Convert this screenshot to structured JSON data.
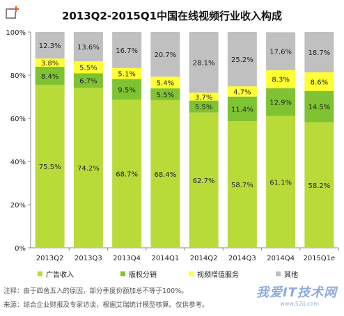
{
  "chart_data": {
    "type": "bar",
    "stacked": true,
    "title": "2013Q2-2015Q1中国在线视频行业收入构成",
    "categories": [
      "2013Q2",
      "2013Q3",
      "2013Q4",
      "2014Q1",
      "2014Q2",
      "2014Q3",
      "2014Q4",
      "2015Q1e"
    ],
    "series": [
      {
        "name": "广告收入",
        "color": "#b9db3a",
        "values": [
          75.5,
          74.2,
          68.7,
          68.4,
          62.7,
          58.7,
          61.1,
          58.2
        ]
      },
      {
        "name": "版权分销",
        "color": "#7fc333",
        "values": [
          8.4,
          6.7,
          9.5,
          5.5,
          5.5,
          11.4,
          12.9,
          14.5
        ]
      },
      {
        "name": "视频增值服务",
        "color": "#ffff33",
        "values": [
          3.8,
          5.5,
          5.1,
          5.4,
          3.7,
          4.7,
          8.3,
          8.6
        ]
      },
      {
        "name": "其他",
        "color": "#c0c0c0",
        "values": [
          12.3,
          13.6,
          16.7,
          20.7,
          28.1,
          25.2,
          17.6,
          18.7
        ]
      }
    ],
    "data_labels": [
      [
        "75.5%",
        "74.2%",
        "68.7%",
        "68.4%",
        "62.7%",
        "58.7%",
        "61.1%",
        "58.2%"
      ],
      [
        "8.4%",
        "6.7%",
        "9.5%",
        "5.5%",
        "5.5%",
        "11.4%",
        "12.9%",
        "14.5%"
      ],
      [
        "3.8%",
        "5.5%",
        "5.1%",
        "5.4%",
        "3.7%",
        "4.7%",
        "8.3%",
        "8.6%"
      ],
      [
        "12.3%",
        "13.6%",
        "16.7%",
        "20.7%",
        "28.1%",
        "25.2%",
        "17.6%",
        "18.7%"
      ]
    ],
    "y_ticks": [
      0,
      20,
      40,
      60,
      80,
      100
    ],
    "y_tick_labels": [
      "0%",
      "20%",
      "40%",
      "60%",
      "80%",
      "100%"
    ],
    "ylim": [
      0,
      100
    ],
    "grid": false,
    "legend_position": "bottom"
  },
  "notes": {
    "note": "注释：由于四舍五入的原因，部分季度份额加总不等于100%。",
    "source": "来源：综合企业财报及专家访谈，根据艾瑞统计模型核算。仅供参考。"
  },
  "watermark": {
    "main": "我爱IT技术网",
    "sub": "www.52ij.com"
  }
}
